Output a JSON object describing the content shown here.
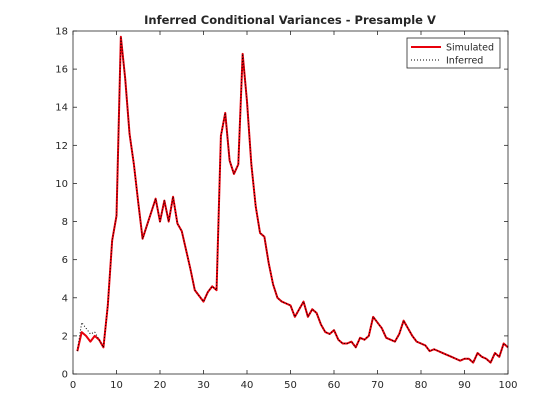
{
  "chart_data": {
    "type": "line",
    "title": "Inferred Conditional Variances - Presample V",
    "xlabel": "",
    "ylabel": "",
    "xlim": [
      0,
      100
    ],
    "ylim": [
      0,
      18
    ],
    "xticks": [
      "0",
      "10",
      "20",
      "30",
      "40",
      "50",
      "60",
      "70",
      "80",
      "90",
      "100"
    ],
    "yticks": [
      "0",
      "2",
      "4",
      "6",
      "8",
      "10",
      "12",
      "14",
      "16",
      "18"
    ],
    "grid": false,
    "legend": {
      "position": "top-right"
    },
    "series": [
      {
        "name": "Simulated",
        "color": "#e8000b",
        "style": "solid",
        "values": [
          [
            1,
            1.2
          ],
          [
            2,
            2.2
          ],
          [
            3,
            2.0
          ],
          [
            4,
            1.7
          ],
          [
            5,
            2.0
          ],
          [
            6,
            1.8
          ],
          [
            7,
            1.4
          ],
          [
            8,
            3.6
          ],
          [
            9,
            7.0
          ],
          [
            10,
            8.3
          ],
          [
            11,
            17.7
          ],
          [
            12,
            15.5
          ],
          [
            13,
            12.6
          ],
          [
            14,
            11.0
          ],
          [
            15,
            9.0
          ],
          [
            16,
            7.1
          ],
          [
            17,
            7.8
          ],
          [
            18,
            8.5
          ],
          [
            19,
            9.2
          ],
          [
            20,
            8.0
          ],
          [
            21,
            9.1
          ],
          [
            22,
            8.0
          ],
          [
            23,
            9.3
          ],
          [
            24,
            7.9
          ],
          [
            25,
            7.5
          ],
          [
            26,
            6.5
          ],
          [
            27,
            5.5
          ],
          [
            28,
            4.4
          ],
          [
            29,
            4.1
          ],
          [
            30,
            3.8
          ],
          [
            31,
            4.3
          ],
          [
            32,
            4.6
          ],
          [
            33,
            4.4
          ],
          [
            34,
            12.5
          ],
          [
            35,
            13.7
          ],
          [
            36,
            11.2
          ],
          [
            37,
            10.5
          ],
          [
            38,
            11.0
          ],
          [
            39,
            16.8
          ],
          [
            40,
            14.3
          ],
          [
            41,
            11.0
          ],
          [
            42,
            8.8
          ],
          [
            43,
            7.4
          ],
          [
            44,
            7.2
          ],
          [
            45,
            5.8
          ],
          [
            46,
            4.7
          ],
          [
            47,
            4.0
          ],
          [
            48,
            3.8
          ],
          [
            49,
            3.7
          ],
          [
            50,
            3.6
          ],
          [
            51,
            3.0
          ],
          [
            52,
            3.4
          ],
          [
            53,
            3.8
          ],
          [
            54,
            3.0
          ],
          [
            55,
            3.4
          ],
          [
            56,
            3.2
          ],
          [
            57,
            2.6
          ],
          [
            58,
            2.2
          ],
          [
            59,
            2.1
          ],
          [
            60,
            2.3
          ],
          [
            61,
            1.8
          ],
          [
            62,
            1.6
          ],
          [
            63,
            1.6
          ],
          [
            64,
            1.7
          ],
          [
            65,
            1.4
          ],
          [
            66,
            1.9
          ],
          [
            67,
            1.8
          ],
          [
            68,
            2.0
          ],
          [
            69,
            3.0
          ],
          [
            70,
            2.7
          ],
          [
            71,
            2.4
          ],
          [
            72,
            1.9
          ],
          [
            73,
            1.8
          ],
          [
            74,
            1.7
          ],
          [
            75,
            2.1
          ],
          [
            76,
            2.8
          ],
          [
            77,
            2.4
          ],
          [
            78,
            2.0
          ],
          [
            79,
            1.7
          ],
          [
            80,
            1.6
          ],
          [
            81,
            1.5
          ],
          [
            82,
            1.2
          ],
          [
            83,
            1.3
          ],
          [
            84,
            1.2
          ],
          [
            85,
            1.1
          ],
          [
            86,
            1.0
          ],
          [
            87,
            0.9
          ],
          [
            88,
            0.8
          ],
          [
            89,
            0.7
          ],
          [
            90,
            0.8
          ],
          [
            91,
            0.8
          ],
          [
            92,
            0.6
          ],
          [
            93,
            1.1
          ],
          [
            94,
            0.9
          ],
          [
            95,
            0.8
          ],
          [
            96,
            0.6
          ],
          [
            97,
            1.1
          ],
          [
            98,
            0.9
          ],
          [
            99,
            1.6
          ],
          [
            100,
            1.4
          ]
        ]
      },
      {
        "name": "Inferred",
        "color": "#000000",
        "style": "dotted",
        "values": [
          [
            1,
            1.2
          ],
          [
            2,
            2.7
          ],
          [
            3,
            2.4
          ],
          [
            4,
            2.1
          ],
          [
            5,
            2.2
          ],
          [
            6,
            1.8
          ],
          [
            7,
            1.4
          ],
          [
            8,
            3.6
          ],
          [
            9,
            7.0
          ],
          [
            10,
            8.3
          ],
          [
            11,
            17.7
          ],
          [
            12,
            15.5
          ],
          [
            13,
            12.6
          ],
          [
            14,
            11.0
          ],
          [
            15,
            9.0
          ],
          [
            16,
            7.1
          ],
          [
            17,
            7.8
          ],
          [
            18,
            8.5
          ],
          [
            19,
            9.2
          ],
          [
            20,
            8.0
          ],
          [
            21,
            9.1
          ],
          [
            22,
            8.0
          ],
          [
            23,
            9.3
          ],
          [
            24,
            7.9
          ],
          [
            25,
            7.5
          ],
          [
            26,
            6.5
          ],
          [
            27,
            5.5
          ],
          [
            28,
            4.4
          ],
          [
            29,
            4.1
          ],
          [
            30,
            3.8
          ],
          [
            31,
            4.3
          ],
          [
            32,
            4.6
          ],
          [
            33,
            4.4
          ],
          [
            34,
            12.5
          ],
          [
            35,
            13.7
          ],
          [
            36,
            11.2
          ],
          [
            37,
            10.5
          ],
          [
            38,
            11.0
          ],
          [
            39,
            16.8
          ],
          [
            40,
            14.3
          ],
          [
            41,
            11.0
          ],
          [
            42,
            8.8
          ],
          [
            43,
            7.4
          ],
          [
            44,
            7.2
          ],
          [
            45,
            5.8
          ],
          [
            46,
            4.7
          ],
          [
            47,
            4.0
          ],
          [
            48,
            3.8
          ],
          [
            49,
            3.7
          ],
          [
            50,
            3.6
          ],
          [
            51,
            3.0
          ],
          [
            52,
            3.4
          ],
          [
            53,
            3.8
          ],
          [
            54,
            3.0
          ],
          [
            55,
            3.4
          ],
          [
            56,
            3.2
          ],
          [
            57,
            2.6
          ],
          [
            58,
            2.2
          ],
          [
            59,
            2.1
          ],
          [
            60,
            2.3
          ],
          [
            61,
            1.8
          ],
          [
            62,
            1.6
          ],
          [
            63,
            1.6
          ],
          [
            64,
            1.7
          ],
          [
            65,
            1.4
          ],
          [
            66,
            1.9
          ],
          [
            67,
            1.8
          ],
          [
            68,
            2.0
          ],
          [
            69,
            3.0
          ],
          [
            70,
            2.7
          ],
          [
            71,
            2.4
          ],
          [
            72,
            1.9
          ],
          [
            73,
            1.8
          ],
          [
            74,
            1.7
          ],
          [
            75,
            2.1
          ],
          [
            76,
            2.8
          ],
          [
            77,
            2.4
          ],
          [
            78,
            2.0
          ],
          [
            79,
            1.7
          ],
          [
            80,
            1.6
          ],
          [
            81,
            1.5
          ],
          [
            82,
            1.2
          ],
          [
            83,
            1.3
          ],
          [
            84,
            1.2
          ],
          [
            85,
            1.1
          ],
          [
            86,
            1.0
          ],
          [
            87,
            0.9
          ],
          [
            88,
            0.8
          ],
          [
            89,
            0.7
          ],
          [
            90,
            0.8
          ],
          [
            91,
            0.8
          ],
          [
            92,
            0.6
          ],
          [
            93,
            1.1
          ],
          [
            94,
            0.9
          ],
          [
            95,
            0.8
          ],
          [
            96,
            0.6
          ],
          [
            97,
            1.1
          ],
          [
            98,
            0.9
          ],
          [
            99,
            1.6
          ],
          [
            100,
            1.4
          ]
        ]
      }
    ]
  }
}
